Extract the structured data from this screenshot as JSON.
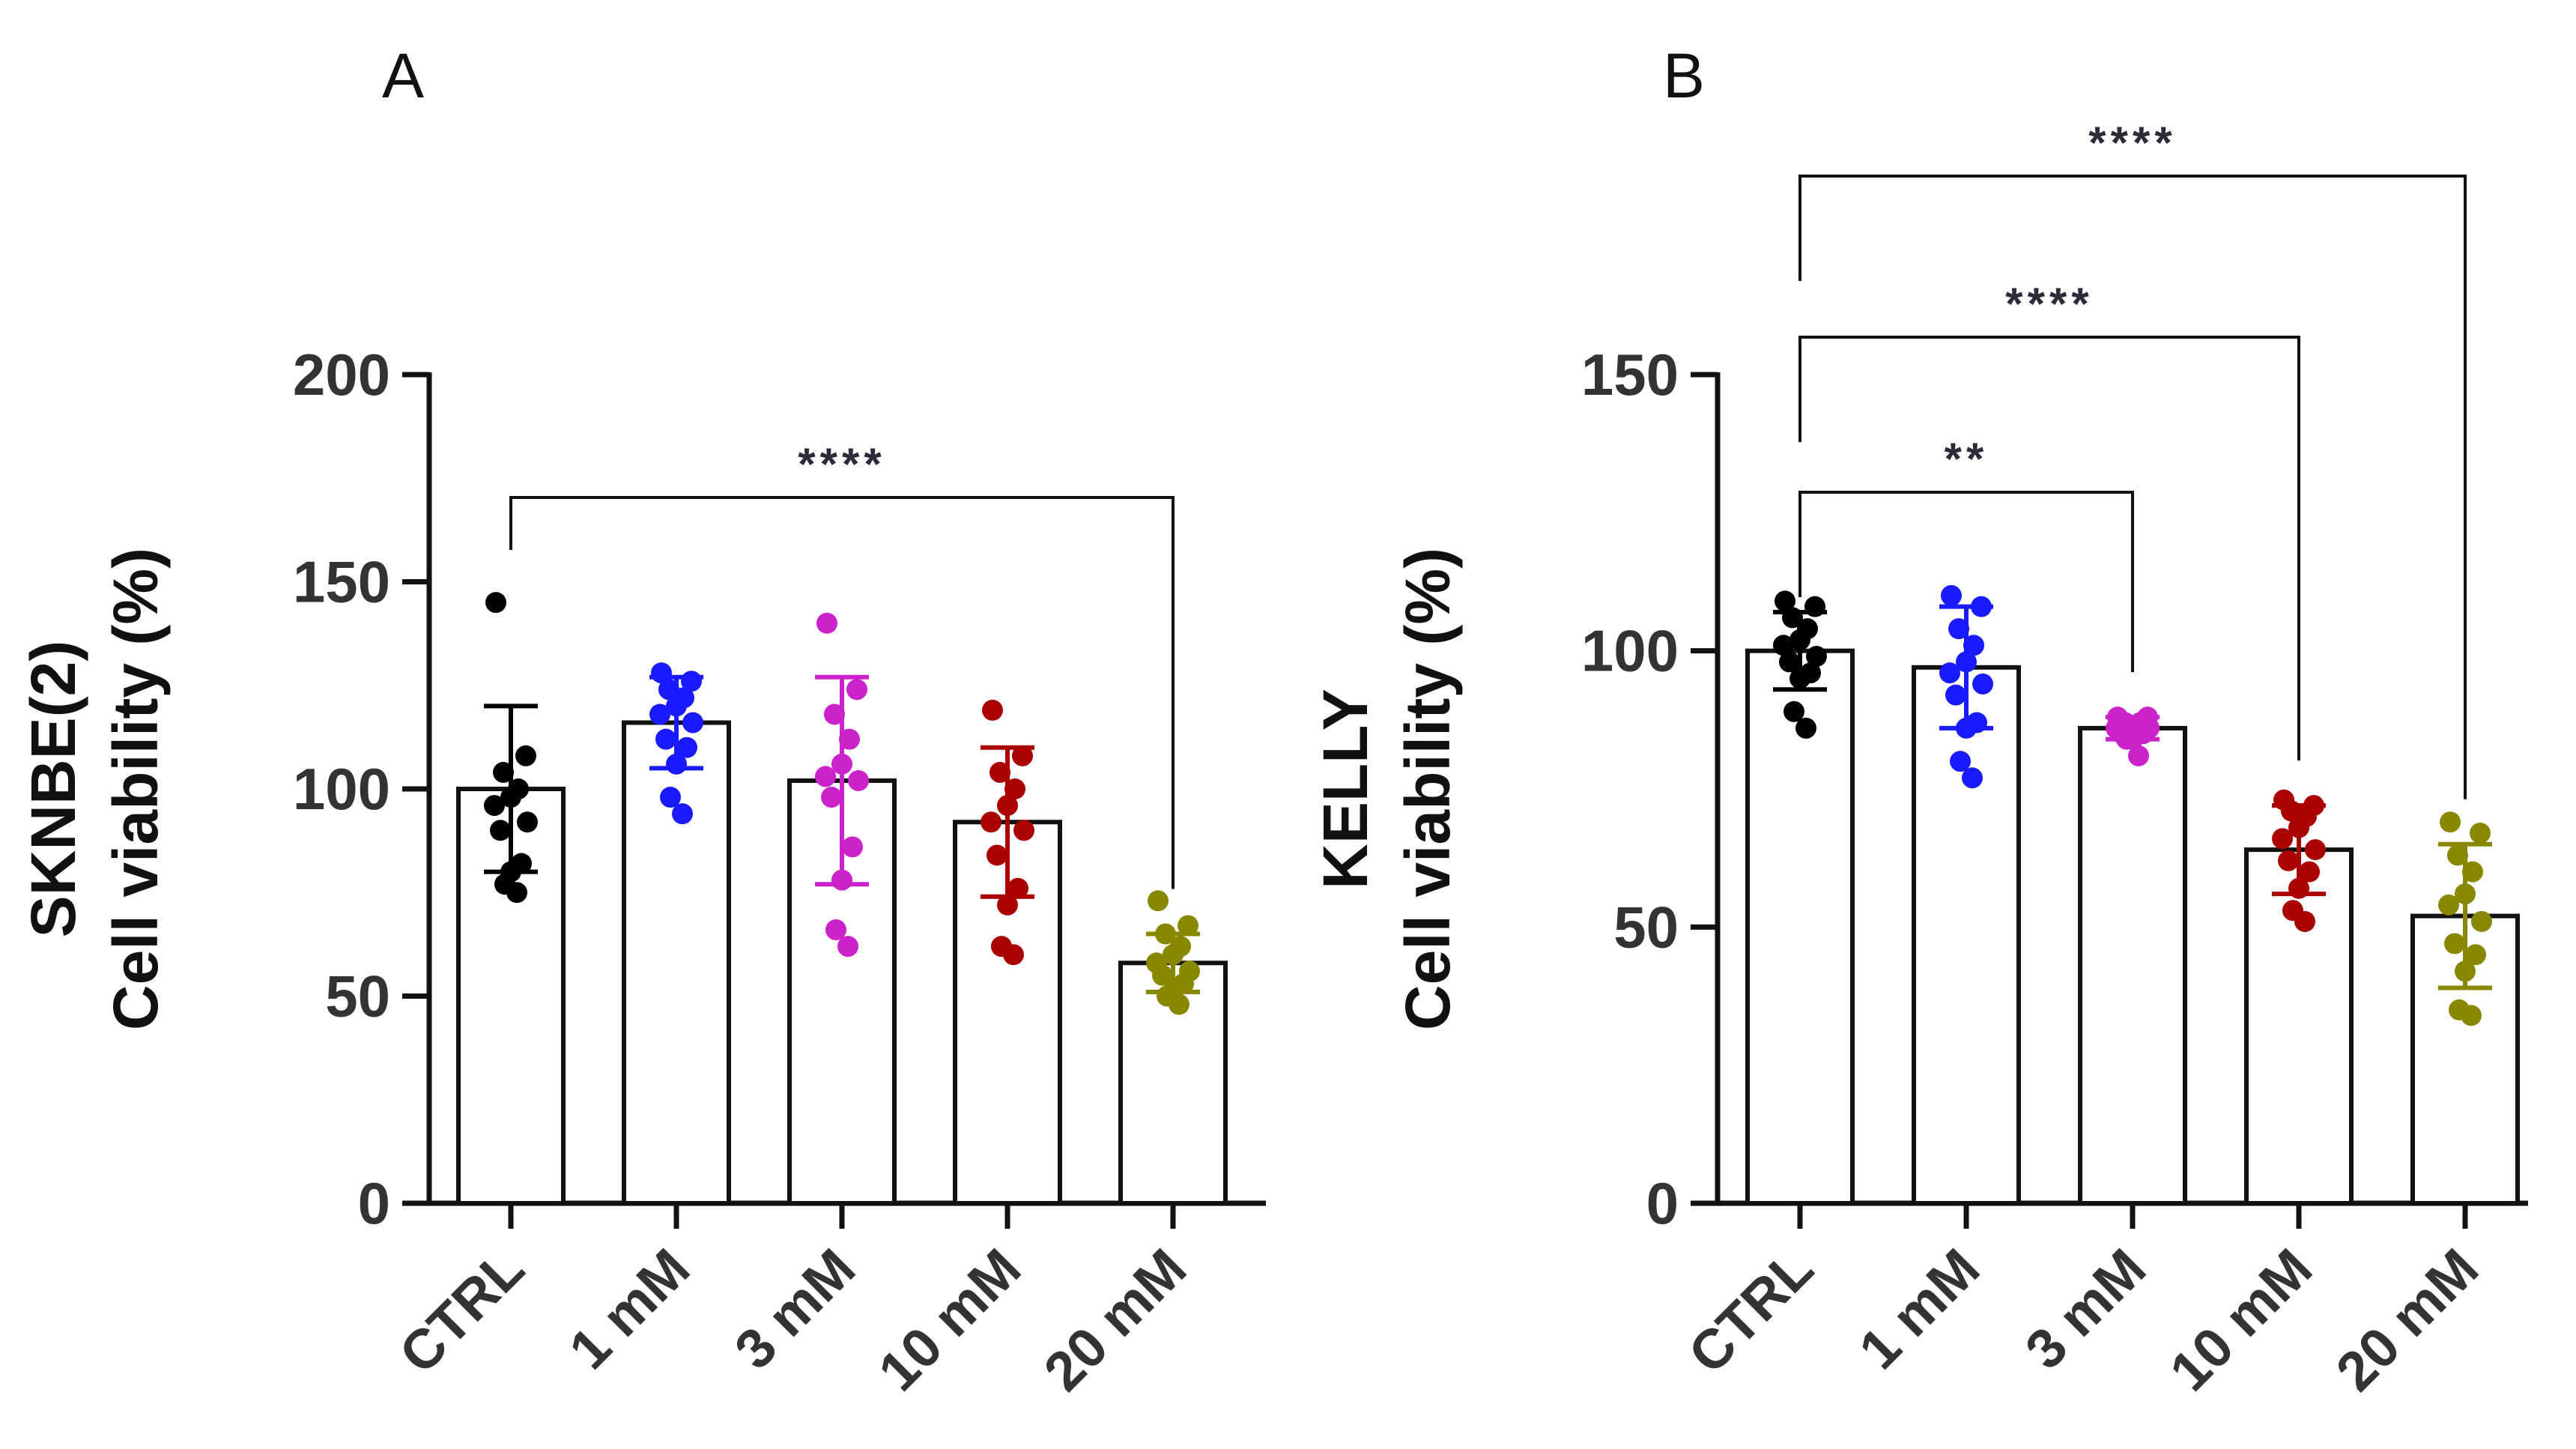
{
  "chart_data": [
    {
      "panel": "A",
      "type": "bar",
      "ylabel_lines": [
        "SKNBE(2)",
        "Cell viability (%)"
      ],
      "xlabel": "",
      "categories": [
        "CTRL",
        "1 mM",
        "3 mM",
        "10 mM",
        "20 mM"
      ],
      "colors": [
        "#000000",
        "#1a1aff",
        "#cc22cc",
        "#aa0000",
        "#888800"
      ],
      "ylim": [
        0,
        200
      ],
      "yticks": [
        "0",
        "50",
        "100",
        "150",
        "200"
      ],
      "means": [
        100,
        116,
        102,
        92,
        58
      ],
      "sd": [
        20,
        11,
        25,
        18,
        7
      ],
      "points": [
        [
          145,
          108,
          104,
          100,
          98,
          96,
          92,
          90,
          82,
          80,
          77,
          75
        ],
        [
          128,
          126,
          124,
          122,
          120,
          118,
          116,
          112,
          110,
          106,
          98,
          94
        ],
        [
          140,
          124,
          118,
          112,
          106,
          103,
          102,
          98,
          86,
          78,
          66,
          62
        ],
        [
          119,
          108,
          104,
          100,
          96,
          92,
          90,
          84,
          76,
          72,
          62,
          60
        ],
        [
          73,
          67,
          65,
          62,
          60,
          58,
          56,
          55,
          53,
          51,
          50,
          48
        ]
      ],
      "comparisons": [
        {
          "from": "CTRL",
          "to": "20 mM",
          "label": "****"
        }
      ]
    },
    {
      "panel": "B",
      "type": "bar",
      "ylabel_lines": [
        "KELLY",
        "Cell viability (%)"
      ],
      "xlabel": "",
      "categories": [
        "CTRL",
        "1 mM",
        "3 mM",
        "10 mM",
        "20 mM"
      ],
      "colors": [
        "#000000",
        "#1a1aff",
        "#cc22cc",
        "#aa0000",
        "#888800"
      ],
      "ylim": [
        0,
        150
      ],
      "yticks": [
        "0",
        "50",
        "100",
        "150"
      ],
      "means": [
        100,
        97,
        86,
        64,
        52
      ],
      "sd": [
        7,
        11,
        2,
        8,
        13
      ],
      "points": [
        [
          109,
          108,
          106,
          104,
          102,
          101,
          99,
          98,
          96,
          95,
          89,
          86
        ],
        [
          110,
          108,
          104,
          101,
          98,
          96,
          94,
          92,
          87,
          86,
          80,
          77
        ],
        [
          88,
          88,
          87,
          87,
          86,
          86,
          86,
          85,
          85,
          84,
          84,
          81
        ],
        [
          73,
          72,
          71,
          70,
          68,
          66,
          64,
          62,
          60,
          57,
          53,
          51
        ],
        [
          69,
          67,
          63,
          60,
          56,
          54,
          51,
          47,
          45,
          42,
          35,
          34
        ]
      ],
      "comparisons": [
        {
          "from": "CTRL",
          "to": "3 mM",
          "label": "**"
        },
        {
          "from": "CTRL",
          "to": "10 mM",
          "label": "****"
        },
        {
          "from": "CTRL",
          "to": "20 mM",
          "label": "****"
        }
      ]
    }
  ]
}
